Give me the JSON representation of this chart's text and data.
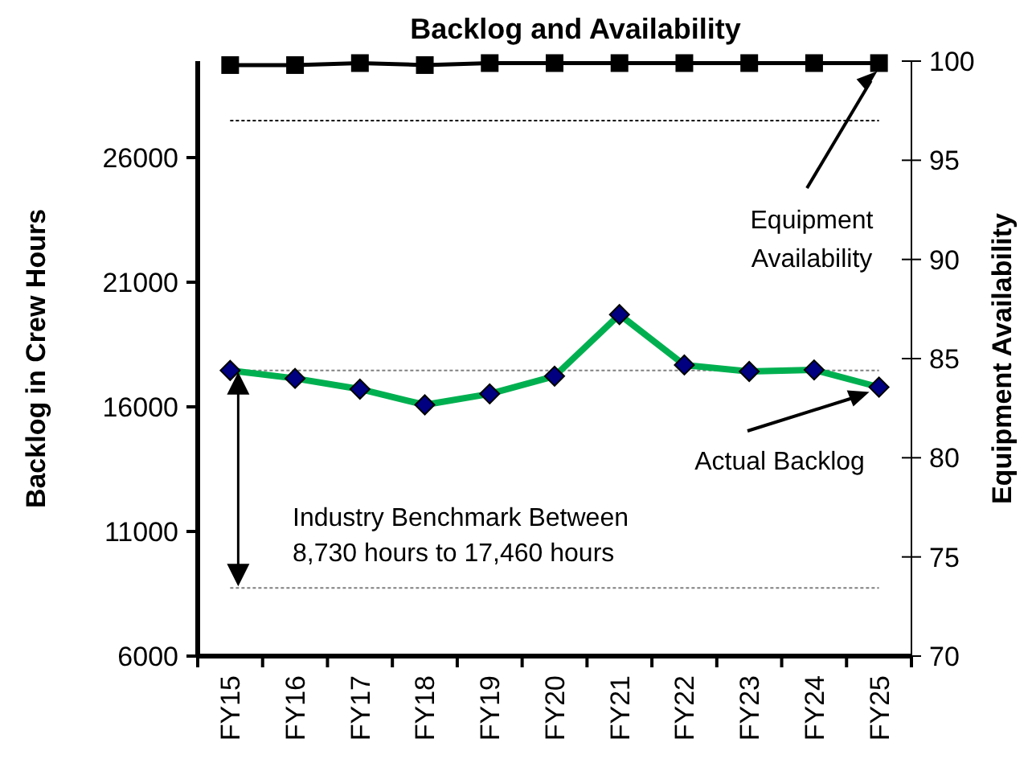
{
  "chart_data": {
    "type": "line",
    "title": "Backlog and Availability",
    "ylabel": "Backlog in Crew Hours",
    "y2label": "Equipment Availability",
    "categories": [
      "FY15",
      "FY16",
      "FY17",
      "FY18",
      "FY19",
      "FY20",
      "FY21",
      "FY22",
      "FY23",
      "FY24",
      "FY25"
    ],
    "series": [
      {
        "name": "Actual Backlog",
        "color": "#00b050",
        "marker": "diamond",
        "values": [
          17460,
          17140,
          16710,
          16080,
          16520,
          17230,
          19700,
          17680,
          17420,
          17480,
          16790
        ]
      },
      {
        "name": "Equipment Availability",
        "color": "#000000",
        "marker": "square",
        "axis": "y2",
        "values": [
          99.8,
          99.8,
          99.9,
          99.8,
          99.9,
          99.9,
          99.9,
          99.9,
          99.9,
          99.9,
          99.9
        ]
      }
    ],
    "ylim": [
      6000,
      29870
    ],
    "yticks": [
      6000,
      11000,
      16000,
      21000,
      26000
    ],
    "y2lim": [
      70,
      100
    ],
    "y2ticks": [
      70,
      75,
      80,
      85,
      90,
      95,
      100
    ],
    "ref_lines": [
      {
        "axis": "y",
        "value": 17460,
        "line_style": "dotted",
        "color": "#808080"
      },
      {
        "axis": "y",
        "value": 8730,
        "line_style": "dotted",
        "color": "#808080"
      },
      {
        "axis": "y2",
        "value": 97,
        "line_style": "dotted",
        "color": "#000000"
      }
    ],
    "annotations": [
      "Industry Benchmark Between\n8,730 hours to 17,460 hours"
    ],
    "grid": false
  }
}
